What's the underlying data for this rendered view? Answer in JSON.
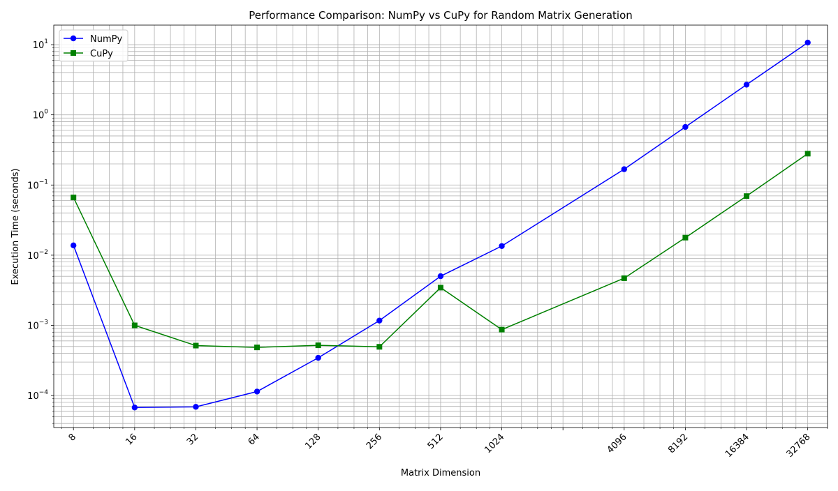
{
  "chart_data": {
    "type": "line",
    "title": "Performance Comparison: NumPy vs CuPy for Random Matrix Generation",
    "xlabel": "Matrix Dimension",
    "ylabel": "Execution Time (seconds)",
    "x_scale": "log2",
    "y_scale": "log10",
    "xlim": [
      6.4,
      41000
    ],
    "ylim": [
      3.5e-05,
      19
    ],
    "grid": "both major and minor",
    "legend_position": "top-left",
    "x": [
      8,
      16,
      32,
      64,
      128,
      256,
      512,
      1024,
      4096,
      8192,
      16384,
      32768
    ],
    "x_tick_labels": [
      "8",
      "16",
      "32",
      "64",
      "128",
      "256",
      "512",
      "1024",
      "4096",
      "8192",
      "16384",
      "32768"
    ],
    "y_ticks": [
      0.0001,
      0.001,
      0.01,
      0.1,
      1,
      10
    ],
    "y_tick_labels": [
      {
        "base": "10",
        "exp": "−4"
      },
      {
        "base": "10",
        "exp": "−3"
      },
      {
        "base": "10",
        "exp": "−2"
      },
      {
        "base": "10",
        "exp": "−1"
      },
      {
        "base": "10",
        "exp": "0"
      },
      {
        "base": "10",
        "exp": "1"
      }
    ],
    "series": [
      {
        "name": "NumPy",
        "color": "#0000ff",
        "marker": "circle",
        "values": [
          0.0138,
          6.75e-05,
          6.9e-05,
          0.000114,
          0.000345,
          0.00117,
          0.00502,
          0.0135,
          0.168,
          0.672,
          2.69,
          10.7
        ]
      },
      {
        "name": "CuPy",
        "color": "#008000",
        "marker": "square",
        "values": [
          0.0665,
          0.001,
          0.000515,
          0.000485,
          0.00052,
          0.000495,
          0.00345,
          0.00087,
          0.0047,
          0.0178,
          0.0695,
          0.28
        ]
      }
    ]
  }
}
